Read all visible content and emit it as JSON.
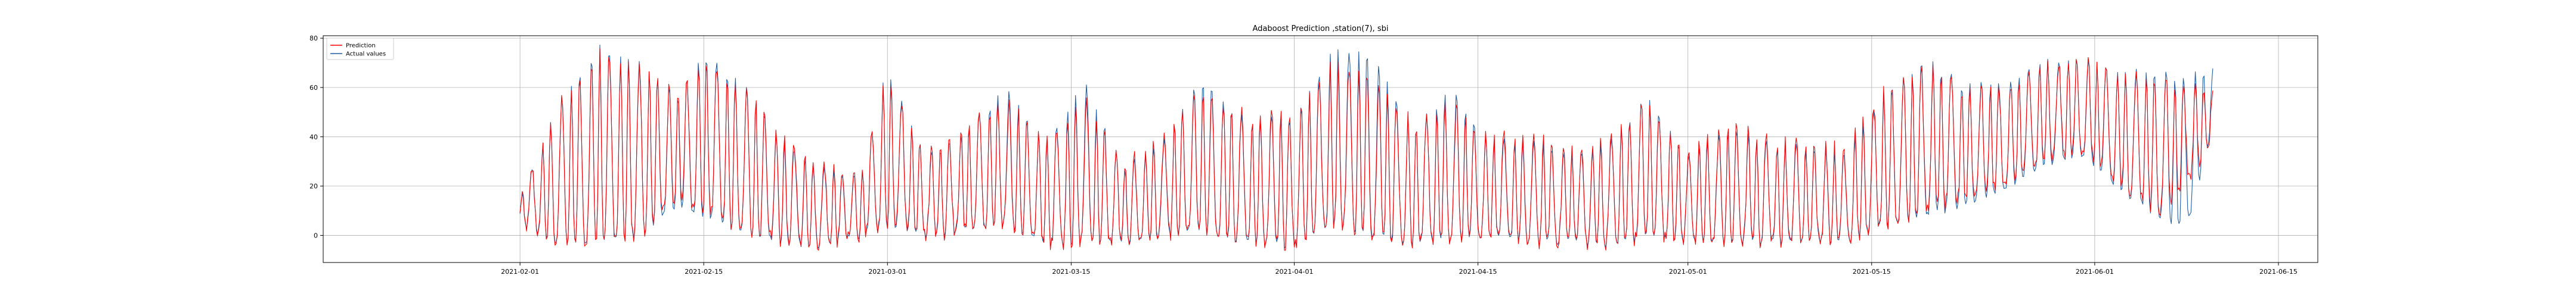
{
  "chart_data": {
    "type": "line",
    "title": "Adaboost Prediction ,station(7), sbi",
    "xlabel": "",
    "ylabel": "",
    "x_range": [
      "2021-01-17",
      "2021-06-18"
    ],
    "data_start": "2021-02-01",
    "data_end": "2021-06-10",
    "ylim": [
      -11,
      81
    ],
    "x_ticks": [
      "2021-02-01",
      "2021-02-15",
      "2021-03-01",
      "2021-03-15",
      "2021-04-01",
      "2021-04-15",
      "2021-05-01",
      "2021-05-15",
      "2021-06-01",
      "2021-06-15"
    ],
    "y_ticks": [
      0,
      20,
      40,
      60,
      80
    ],
    "grid": true,
    "legend_position": "top-left",
    "series": [
      {
        "name": "Prediction",
        "color": "#ff0000",
        "envelope": [
          {
            "date": "2021-02-01",
            "min": 5,
            "max": 15
          },
          {
            "date": "2021-02-04",
            "min": -3,
            "max": 55
          },
          {
            "date": "2021-02-07",
            "min": -2,
            "max": 75
          },
          {
            "date": "2021-02-10",
            "min": 0,
            "max": 68
          },
          {
            "date": "2021-02-13",
            "min": 15,
            "max": 60
          },
          {
            "date": "2021-02-15",
            "min": 10,
            "max": 72
          },
          {
            "date": "2021-02-18",
            "min": 3,
            "max": 60
          },
          {
            "date": "2021-02-21",
            "min": -2,
            "max": 40
          },
          {
            "date": "2021-02-24",
            "min": -4,
            "max": 30
          },
          {
            "date": "2021-02-27",
            "min": 0,
            "max": 25
          },
          {
            "date": "2021-03-01",
            "min": 5,
            "max": 65
          },
          {
            "date": "2021-03-04",
            "min": 0,
            "max": 35
          },
          {
            "date": "2021-03-07",
            "min": 2,
            "max": 45
          },
          {
            "date": "2021-03-10",
            "min": 5,
            "max": 55
          },
          {
            "date": "2021-03-13",
            "min": -4,
            "max": 40
          },
          {
            "date": "2021-03-16",
            "min": -2,
            "max": 55
          },
          {
            "date": "2021-03-19",
            "min": -3,
            "max": 30
          },
          {
            "date": "2021-03-22",
            "min": 0,
            "max": 40
          },
          {
            "date": "2021-03-25",
            "min": 2,
            "max": 60
          },
          {
            "date": "2021-03-28",
            "min": -3,
            "max": 50
          },
          {
            "date": "2021-04-01",
            "min": -4,
            "max": 50
          },
          {
            "date": "2021-04-04",
            "min": 5,
            "max": 70
          },
          {
            "date": "2021-04-07",
            "min": 0,
            "max": 68
          },
          {
            "date": "2021-04-10",
            "min": -3,
            "max": 45
          },
          {
            "date": "2021-04-13",
            "min": -2,
            "max": 55
          },
          {
            "date": "2021-04-16",
            "min": 0,
            "max": 40
          },
          {
            "date": "2021-04-19",
            "min": -3,
            "max": 40
          },
          {
            "date": "2021-04-22",
            "min": -2,
            "max": 35
          },
          {
            "date": "2021-04-25",
            "min": -4,
            "max": 40
          },
          {
            "date": "2021-04-28",
            "min": 0,
            "max": 55
          },
          {
            "date": "2021-05-01",
            "min": -3,
            "max": 35
          },
          {
            "date": "2021-05-04",
            "min": -2,
            "max": 45
          },
          {
            "date": "2021-05-07",
            "min": -3,
            "max": 40
          },
          {
            "date": "2021-05-10",
            "min": -2,
            "max": 38
          },
          {
            "date": "2021-05-13",
            "min": -3,
            "max": 35
          },
          {
            "date": "2021-05-16",
            "min": 5,
            "max": 60
          },
          {
            "date": "2021-05-19",
            "min": 10,
            "max": 70
          },
          {
            "date": "2021-05-22",
            "min": 15,
            "max": 60
          },
          {
            "date": "2021-05-25",
            "min": 20,
            "max": 60
          },
          {
            "date": "2021-05-28",
            "min": 30,
            "max": 68
          },
          {
            "date": "2021-05-31",
            "min": 35,
            "max": 72
          },
          {
            "date": "2021-06-03",
            "min": 20,
            "max": 65
          },
          {
            "date": "2021-06-06",
            "min": 10,
            "max": 65
          },
          {
            "date": "2021-06-08",
            "min": 20,
            "max": 62
          },
          {
            "date": "2021-06-10",
            "min": 40,
            "max": 62
          }
        ]
      },
      {
        "name": "Actual values",
        "color": "#1f5fa8",
        "envelope": [
          {
            "date": "2021-02-01",
            "min": 5,
            "max": 15
          },
          {
            "date": "2021-02-04",
            "min": -3,
            "max": 55
          },
          {
            "date": "2021-02-07",
            "min": -2,
            "max": 77
          },
          {
            "date": "2021-02-10",
            "min": 0,
            "max": 70
          },
          {
            "date": "2021-02-13",
            "min": 12,
            "max": 58
          },
          {
            "date": "2021-02-15",
            "min": 8,
            "max": 75
          },
          {
            "date": "2021-02-18",
            "min": 2,
            "max": 62
          },
          {
            "date": "2021-02-21",
            "min": -3,
            "max": 38
          },
          {
            "date": "2021-02-24",
            "min": -4,
            "max": 28
          },
          {
            "date": "2021-02-27",
            "min": 0,
            "max": 24
          },
          {
            "date": "2021-03-01",
            "min": 4,
            "max": 68
          },
          {
            "date": "2021-03-04",
            "min": 0,
            "max": 33
          },
          {
            "date": "2021-03-07",
            "min": 2,
            "max": 43
          },
          {
            "date": "2021-03-10",
            "min": 5,
            "max": 60
          },
          {
            "date": "2021-03-13",
            "min": -4,
            "max": 38
          },
          {
            "date": "2021-03-16",
            "min": -2,
            "max": 62
          },
          {
            "date": "2021-03-19",
            "min": -3,
            "max": 28
          },
          {
            "date": "2021-03-22",
            "min": 0,
            "max": 38
          },
          {
            "date": "2021-03-25",
            "min": 2,
            "max": 65
          },
          {
            "date": "2021-03-28",
            "min": -3,
            "max": 48
          },
          {
            "date": "2021-04-01",
            "min": -4,
            "max": 48
          },
          {
            "date": "2021-04-04",
            "min": 5,
            "max": 75
          },
          {
            "date": "2021-04-07",
            "min": 0,
            "max": 76
          },
          {
            "date": "2021-04-10",
            "min": -3,
            "max": 43
          },
          {
            "date": "2021-04-13",
            "min": -2,
            "max": 60
          },
          {
            "date": "2021-04-16",
            "min": 0,
            "max": 38
          },
          {
            "date": "2021-04-19",
            "min": -3,
            "max": 38
          },
          {
            "date": "2021-04-22",
            "min": -2,
            "max": 33
          },
          {
            "date": "2021-04-25",
            "min": -4,
            "max": 38
          },
          {
            "date": "2021-04-28",
            "min": 0,
            "max": 57
          },
          {
            "date": "2021-05-01",
            "min": -3,
            "max": 33
          },
          {
            "date": "2021-05-04",
            "min": -2,
            "max": 43
          },
          {
            "date": "2021-05-07",
            "min": -3,
            "max": 38
          },
          {
            "date": "2021-05-10",
            "min": -2,
            "max": 36
          },
          {
            "date": "2021-05-13",
            "min": -3,
            "max": 33
          },
          {
            "date": "2021-05-16",
            "min": 5,
            "max": 58
          },
          {
            "date": "2021-05-19",
            "min": 8,
            "max": 72
          },
          {
            "date": "2021-05-22",
            "min": 12,
            "max": 62
          },
          {
            "date": "2021-05-25",
            "min": 18,
            "max": 62
          },
          {
            "date": "2021-05-28",
            "min": 28,
            "max": 70
          },
          {
            "date": "2021-05-31",
            "min": 33,
            "max": 72
          },
          {
            "date": "2021-06-03",
            "min": 18,
            "max": 66
          },
          {
            "date": "2021-06-06",
            "min": 8,
            "max": 68
          },
          {
            "date": "2021-06-08",
            "min": 2,
            "max": 65
          },
          {
            "date": "2021-06-10",
            "min": 45,
            "max": 70
          }
        ]
      }
    ]
  }
}
